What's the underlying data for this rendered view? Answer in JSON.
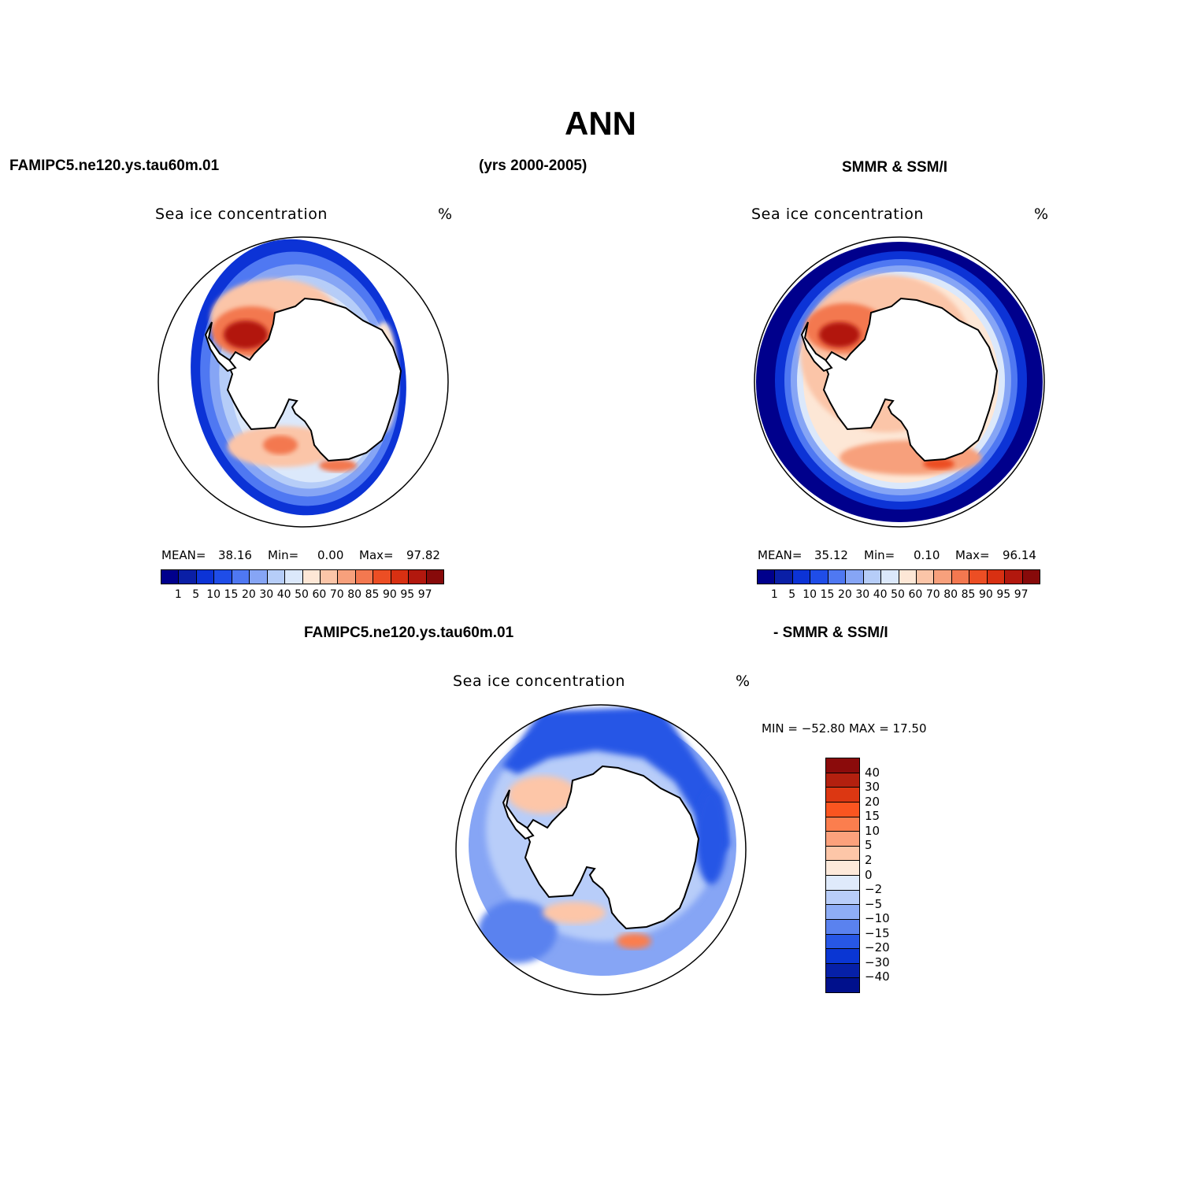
{
  "title": "ANN",
  "header": {
    "left": "FAMIPC5.ne120.ys.tau60m.01",
    "center": "(yrs 2000-2005)",
    "right": "SMMR & SSM/I"
  },
  "diff_header": {
    "left": "FAMIPC5.ne120.ys.tau60m.01",
    "right": "- SMMR & SSM/I"
  },
  "panels": [
    {
      "name": "model",
      "title": "Sea ice concentration",
      "units": "%",
      "mean_label": "MEAN=",
      "mean": "38.16",
      "min_label": "Min=",
      "min": "0.00",
      "max_label": "Max=",
      "max": "97.82"
    },
    {
      "name": "obs",
      "title": "Sea ice concentration",
      "units": "%",
      "mean_label": "MEAN=",
      "mean": "35.12",
      "min_label": "Min=",
      "min": "0.10",
      "max_label": "Max=",
      "max": "96.14"
    }
  ],
  "abs_colorbar": {
    "levels": [
      "1",
      "5",
      "10",
      "15",
      "20",
      "30",
      "40",
      "50",
      "60",
      "70",
      "80",
      "85",
      "90",
      "95",
      "97"
    ],
    "colors": [
      "#00008c",
      "#0a1fa6",
      "#0c33d6",
      "#1f4de8",
      "#4f78f2",
      "#86a5f5",
      "#b6cdf8",
      "#dbe8fb",
      "#fde7d6",
      "#fbc5a8",
      "#f7a07c",
      "#f37850",
      "#ec4e24",
      "#d83012",
      "#b2180e",
      "#870a0a"
    ]
  },
  "diff_panel": {
    "title": "Sea ice concentration",
    "units": "%",
    "minmax": "MIN = −52.80  MAX =   17.50"
  },
  "diff_colorbar": {
    "levels": [
      "40",
      "30",
      "20",
      "15",
      "10",
      "5",
      "2",
      "0",
      "−2",
      "−5",
      "−10",
      "−15",
      "−20",
      "−30",
      "−40"
    ],
    "colors": [
      "#8b0b0b",
      "#b3200f",
      "#dc3712",
      "#fa5520",
      "#fb7e4e",
      "#fca17c",
      "#fdc6a8",
      "#fde9da",
      "#dfeafb",
      "#b8cdf9",
      "#8eadf6",
      "#5a82ef",
      "#2757e6",
      "#0a36d3",
      "#0620a8",
      "#00108c"
    ]
  },
  "colors": {
    "continent_fill": "#ffffff",
    "outline": "#000000"
  }
}
